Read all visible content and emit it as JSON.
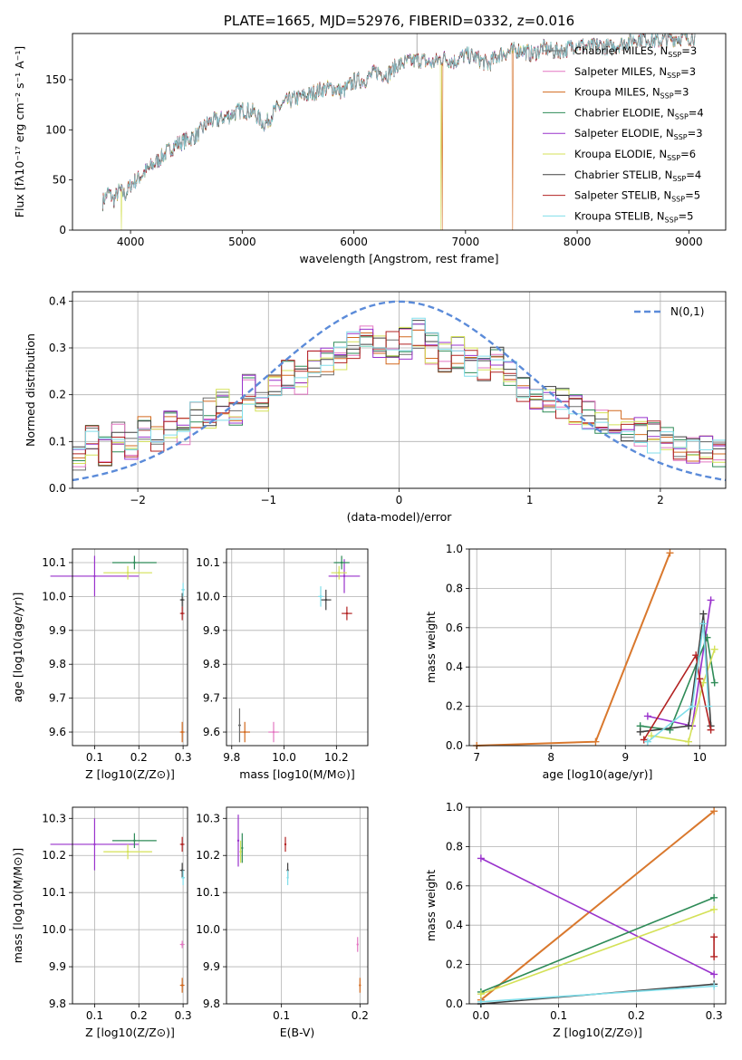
{
  "colors": {
    "chabrier_miles": "#6b6b6b",
    "salpeter_miles": "#e377c2",
    "kroupa_miles": "#d2691e",
    "chabrier_elodie": "#2e8b57",
    "salpeter_elodie": "#9932cc",
    "kroupa_elodie": "#d4e157",
    "chabrier_stelib": "#404040",
    "salpeter_stelib": "#b22222",
    "kroupa_stelib": "#80deea",
    "normal": "#5b8bd9",
    "model_orange": "#d9782d"
  },
  "chart_data": [
    {
      "id": "spectrum",
      "type": "line",
      "title": "PLATE=1665, MJD=52976, FIBERID=0332, z=0.016",
      "xlabel": "wavelength [Angstrom, rest frame]",
      "ylabel": "Flux [fλ10⁻¹⁷ erg cm⁻² s⁻¹ A⁻¹]",
      "xlim": [
        3480,
        9330
      ],
      "ylim": [
        0,
        196
      ],
      "xticks": [
        4000,
        5000,
        6000,
        7000,
        8000,
        9000
      ],
      "yticks": [
        0,
        50,
        100,
        150
      ],
      "x": [
        3750,
        3800,
        3850,
        3900,
        3950,
        4000,
        4100,
        4200,
        4300,
        4400,
        4500,
        4600,
        4700,
        4800,
        4900,
        5000,
        5100,
        5200,
        5300,
        5400,
        5500,
        5600,
        5700,
        5800,
        5900,
        6000,
        6100,
        6200,
        6300,
        6400,
        6500,
        6600,
        6700,
        6800,
        6900,
        7000,
        7100,
        7200,
        7300,
        7400,
        7500,
        7600,
        7700,
        7800,
        7900,
        8000,
        8100,
        8200,
        8300,
        8400,
        8500,
        8600,
        8700,
        8800,
        8900,
        9000,
        9050
      ],
      "y": [
        28,
        38,
        30,
        40,
        35,
        45,
        55,
        65,
        75,
        85,
        90,
        95,
        108,
        110,
        115,
        120,
        118,
        105,
        120,
        128,
        132,
        135,
        140,
        142,
        138,
        148,
        150,
        158,
        155,
        165,
        168,
        170,
        166,
        172,
        168,
        175,
        172,
        165,
        175,
        178,
        180,
        175,
        182,
        178,
        180,
        186,
        182,
        184,
        182,
        186,
        190,
        192,
        188,
        190,
        192,
        192,
        193
      ],
      "series": [
        {
          "name": "Chabrier MILES, N_SSP=3",
          "color_key": "chabrier_miles"
        },
        {
          "name": "Salpeter MILES, N_SSP=3",
          "color_key": "salpeter_miles"
        },
        {
          "name": "Kroupa MILES, N_SSP=3",
          "color_key": "kroupa_miles"
        },
        {
          "name": "Chabrier ELODIE, N_SSP=4",
          "color_key": "chabrier_elodie"
        },
        {
          "name": "Salpeter ELODIE, N_SSP=3",
          "color_key": "salpeter_elodie"
        },
        {
          "name": "Kroupa ELODIE, N_SSP=6",
          "color_key": "kroupa_elodie"
        },
        {
          "name": "Chabrier STELIB, N_SSP=4",
          "color_key": "chabrier_stelib"
        },
        {
          "name": "Salpeter STELIB, N_SSP=5",
          "color_key": "salpeter_stelib"
        },
        {
          "name": "Kroupa STELIB, N_SSP=5",
          "color_key": "kroupa_stelib"
        }
      ],
      "legend": "top-right",
      "grid": false
    },
    {
      "id": "residuals",
      "type": "line",
      "xlabel": "(data-model)/error",
      "ylabel": "Normed distribution",
      "xlim": [
        -2.5,
        2.5
      ],
      "ylim": [
        0,
        0.42
      ],
      "xticks": [
        -2,
        -1,
        0,
        1,
        2
      ],
      "yticks": [
        0.0,
        0.1,
        0.2,
        0.3,
        0.4
      ],
      "legend_label": "N(0,1)",
      "legend": "top-right",
      "grid": true,
      "bin_edges": [
        -2.5,
        -2.4,
        -2.3,
        -2.2,
        -2.1,
        -2.0,
        -1.9,
        -1.8,
        -1.7,
        -1.6,
        -1.5,
        -1.4,
        -1.3,
        -1.2,
        -1.1,
        -1.0,
        -0.9,
        -0.8,
        -0.7,
        -0.6,
        -0.5,
        -0.4,
        -0.3,
        -0.2,
        -0.1,
        0.0,
        0.1,
        0.2,
        0.3,
        0.4,
        0.5,
        0.6,
        0.7,
        0.8,
        0.9,
        1.0,
        1.1,
        1.2,
        1.3,
        1.4,
        1.5,
        1.6,
        1.7,
        1.8,
        1.9,
        2.0,
        2.1,
        2.2,
        2.3,
        2.4,
        2.5
      ],
      "histogram_base": [
        0.07,
        0.1,
        0.08,
        0.11,
        0.09,
        0.12,
        0.1,
        0.14,
        0.12,
        0.15,
        0.16,
        0.18,
        0.17,
        0.21,
        0.2,
        0.22,
        0.24,
        0.23,
        0.26,
        0.27,
        0.28,
        0.3,
        0.32,
        0.31,
        0.3,
        0.31,
        0.33,
        0.3,
        0.28,
        0.29,
        0.27,
        0.26,
        0.27,
        0.24,
        0.22,
        0.2,
        0.19,
        0.18,
        0.17,
        0.16,
        0.15,
        0.14,
        0.13,
        0.12,
        0.11,
        0.1,
        0.09,
        0.08,
        0.08,
        0.07
      ]
    },
    {
      "id": "age_vs_z",
      "type": "scatter",
      "xlabel": "Z [log10(Z/Z⊙)]",
      "ylabel": "age  [log10(age/yr)]",
      "xlim": [
        0.05,
        0.31
      ],
      "ylim": [
        9.56,
        10.14
      ],
      "xticks": [
        0.1,
        0.2,
        0.3
      ],
      "yticks": [
        9.6,
        9.7,
        9.8,
        9.9,
        10.0,
        10.1
      ],
      "grid": true,
      "points": [
        {
          "x": 0.1,
          "y": 10.06,
          "xerr": 0.1,
          "yerr": 0.06,
          "color_key": "salpeter_elodie"
        },
        {
          "x": 0.19,
          "y": 10.1,
          "xerr": 0.05,
          "yerr": 0.02,
          "color_key": "chabrier_elodie"
        },
        {
          "x": 0.175,
          "y": 10.07,
          "xerr": 0.055,
          "yerr": 0.02,
          "color_key": "kroupa_elodie"
        },
        {
          "x": 0.298,
          "y": 9.99,
          "xerr": 0.005,
          "yerr": 0.02,
          "color_key": "chabrier_stelib"
        },
        {
          "x": 0.298,
          "y": 9.95,
          "xerr": 0.005,
          "yerr": 0.02,
          "color_key": "salpeter_stelib"
        },
        {
          "x": 0.298,
          "y": 9.6,
          "xerr": 0.005,
          "yerr": 0.03,
          "color_key": "kroupa_miles"
        },
        {
          "x": 0.3,
          "y": 10.02,
          "xerr": 0.004,
          "yerr": 0.02,
          "color_key": "kroupa_stelib"
        }
      ]
    },
    {
      "id": "age_vs_mass",
      "type": "scatter",
      "xlabel": "mass [log10(M/M⊙)]",
      "ylabel": "",
      "xlim": [
        9.78,
        10.32
      ],
      "ylim": [
        9.56,
        10.14
      ],
      "xticks": [
        9.8,
        10.0,
        10.2
      ],
      "yticks": [
        9.6,
        9.7,
        9.8,
        9.9,
        10.0,
        10.1
      ],
      "grid": true,
      "points": [
        {
          "x": 10.23,
          "y": 10.06,
          "xerr": 0.06,
          "yerr": 0.05,
          "color_key": "salpeter_elodie"
        },
        {
          "x": 10.22,
          "y": 10.1,
          "xerr": 0.03,
          "yerr": 0.02,
          "color_key": "chabrier_elodie"
        },
        {
          "x": 10.21,
          "y": 10.07,
          "xerr": 0.03,
          "yerr": 0.02,
          "color_key": "kroupa_elodie"
        },
        {
          "x": 10.16,
          "y": 9.99,
          "xerr": 0.02,
          "yerr": 0.03,
          "color_key": "chabrier_stelib"
        },
        {
          "x": 10.24,
          "y": 9.95,
          "xerr": 0.02,
          "yerr": 0.02,
          "color_key": "salpeter_stelib"
        },
        {
          "x": 10.14,
          "y": 10.0,
          "xerr": 0.01,
          "yerr": 0.03,
          "color_key": "kroupa_stelib"
        },
        {
          "x": 9.85,
          "y": 9.6,
          "xerr": 0.02,
          "yerr": 0.03,
          "color_key": "kroupa_miles"
        },
        {
          "x": 9.83,
          "y": 9.62,
          "xerr": 0.005,
          "yerr": 0.05,
          "color_key": "chabrier_miles"
        },
        {
          "x": 9.96,
          "y": 9.6,
          "xerr": 0.02,
          "yerr": 0.03,
          "color_key": "salpeter_miles"
        }
      ]
    },
    {
      "id": "massweight_vs_age",
      "type": "line",
      "xlabel": "age  [log10(age/yr)]",
      "ylabel": "mass weight",
      "xlim": [
        6.9,
        10.35
      ],
      "ylim": [
        0,
        1.0
      ],
      "xticks": [
        7,
        8,
        9,
        10
      ],
      "yticks": [
        0.0,
        0.2,
        0.4,
        0.6,
        0.8,
        1.0
      ],
      "grid": true,
      "series": [
        {
          "color_key": "model_orange",
          "points": [
            [
              7.0,
              0.0
            ],
            [
              8.6,
              0.02
            ],
            [
              9.6,
              0.98
            ]
          ]
        },
        {
          "color_key": "salpeter_elodie",
          "points": [
            [
              9.3,
              0.15
            ],
            [
              9.9,
              0.1
            ],
            [
              10.15,
              0.74
            ]
          ]
        },
        {
          "color_key": "chabrier_elodie",
          "points": [
            [
              9.2,
              0.1
            ],
            [
              9.6,
              0.08
            ],
            [
              10.1,
              0.55
            ],
            [
              10.2,
              0.32
            ]
          ]
        },
        {
          "color_key": "kroupa_elodie",
          "points": [
            [
              9.35,
              0.05
            ],
            [
              9.85,
              0.02
            ],
            [
              10.05,
              0.32
            ],
            [
              10.2,
              0.49
            ]
          ]
        },
        {
          "color_key": "chabrier_stelib",
          "points": [
            [
              9.2,
              0.07
            ],
            [
              9.85,
              0.1
            ],
            [
              10.05,
              0.67
            ],
            [
              10.15,
              0.1
            ]
          ]
        },
        {
          "color_key": "salpeter_stelib",
          "points": [
            [
              9.25,
              0.03
            ],
            [
              9.95,
              0.46
            ],
            [
              10.0,
              0.34
            ],
            [
              10.15,
              0.08
            ]
          ]
        },
        {
          "color_key": "kroupa_stelib",
          "points": [
            [
              9.3,
              0.02
            ],
            [
              9.9,
              0.2
            ],
            [
              10.05,
              0.62
            ],
            [
              10.12,
              0.2
            ]
          ]
        }
      ]
    },
    {
      "id": "mass_vs_z",
      "type": "scatter",
      "xlabel": "Z [log10(Z/Z⊙)]",
      "ylabel": "mass [log10(M/M⊙)]",
      "xlim": [
        0.05,
        0.31
      ],
      "ylim": [
        9.8,
        10.33
      ],
      "xticks": [
        0.1,
        0.2,
        0.3
      ],
      "yticks": [
        9.8,
        9.9,
        10.0,
        10.1,
        10.2,
        10.3
      ],
      "grid": true,
      "points": [
        {
          "x": 0.1,
          "y": 10.23,
          "xerr": 0.1,
          "yerr": 0.07,
          "color_key": "salpeter_elodie"
        },
        {
          "x": 0.19,
          "y": 10.24,
          "xerr": 0.05,
          "yerr": 0.02,
          "color_key": "chabrier_elodie"
        },
        {
          "x": 0.175,
          "y": 10.21,
          "xerr": 0.055,
          "yerr": 0.02,
          "color_key": "kroupa_elodie"
        },
        {
          "x": 0.298,
          "y": 10.16,
          "xerr": 0.005,
          "yerr": 0.02,
          "color_key": "chabrier_stelib"
        },
        {
          "x": 0.298,
          "y": 10.23,
          "xerr": 0.005,
          "yerr": 0.02,
          "color_key": "salpeter_stelib"
        },
        {
          "x": 0.3,
          "y": 10.14,
          "xerr": 0.004,
          "yerr": 0.02,
          "color_key": "kroupa_stelib"
        },
        {
          "x": 0.298,
          "y": 9.96,
          "xerr": 0.005,
          "yerr": 0.01,
          "color_key": "salpeter_miles"
        },
        {
          "x": 0.298,
          "y": 9.85,
          "xerr": 0.005,
          "yerr": 0.02,
          "color_key": "kroupa_miles"
        }
      ]
    },
    {
      "id": "mass_vs_ebv",
      "type": "scatter",
      "xlabel": "E(B-V)",
      "ylabel": "",
      "xlim": [
        0.03,
        0.21
      ],
      "ylim": [
        9.8,
        10.33
      ],
      "xticks": [
        0.1,
        0.2
      ],
      "yticks": [
        9.8,
        9.9,
        10.0,
        10.1,
        10.2,
        10.3
      ],
      "grid": true,
      "points": [
        {
          "x": 0.045,
          "y": 10.24,
          "yerr": 0.07,
          "color_key": "salpeter_elodie"
        },
        {
          "x": 0.05,
          "y": 10.22,
          "yerr": 0.04,
          "color_key": "chabrier_elodie"
        },
        {
          "x": 0.048,
          "y": 10.21,
          "yerr": 0.03,
          "color_key": "kroupa_elodie"
        },
        {
          "x": 0.108,
          "y": 10.16,
          "yerr": 0.02,
          "color_key": "chabrier_stelib"
        },
        {
          "x": 0.105,
          "y": 10.23,
          "yerr": 0.02,
          "color_key": "salpeter_stelib"
        },
        {
          "x": 0.108,
          "y": 10.14,
          "yerr": 0.02,
          "color_key": "kroupa_stelib"
        },
        {
          "x": 0.197,
          "y": 9.96,
          "yerr": 0.02,
          "color_key": "salpeter_miles"
        },
        {
          "x": 0.2,
          "y": 9.85,
          "yerr": 0.02,
          "color_key": "kroupa_miles"
        }
      ]
    },
    {
      "id": "massweight_vs_z",
      "type": "line",
      "xlabel": "Z [log10(Z/Z⊙)]",
      "ylabel": "mass weight",
      "xlim": [
        -0.015,
        0.315
      ],
      "ylim": [
        0,
        1.0
      ],
      "xticks": [
        0.0,
        0.1,
        0.2,
        0.3
      ],
      "yticks": [
        0.0,
        0.2,
        0.4,
        0.6,
        0.8,
        1.0
      ],
      "grid": true,
      "series": [
        {
          "color_key": "model_orange",
          "points": [
            [
              0.0,
              0.02
            ],
            [
              0.3,
              0.98
            ]
          ]
        },
        {
          "color_key": "salpeter_elodie",
          "points": [
            [
              0.0,
              0.74
            ],
            [
              0.3,
              0.15
            ]
          ]
        },
        {
          "color_key": "chabrier_elodie",
          "points": [
            [
              0.0,
              0.06
            ],
            [
              0.3,
              0.54
            ]
          ]
        },
        {
          "color_key": "kroupa_elodie",
          "points": [
            [
              0.0,
              0.05
            ],
            [
              0.3,
              0.48
            ]
          ]
        },
        {
          "color_key": "chabrier_stelib",
          "points": [
            [
              0.0,
              0.0
            ],
            [
              0.3,
              0.1
            ]
          ]
        },
        {
          "color_key": "kroupa_stelib",
          "points": [
            [
              0.0,
              0.01
            ],
            [
              0.3,
              0.09
            ]
          ]
        },
        {
          "color_key": "salpeter_stelib",
          "points": [
            [
              0.3,
              0.34
            ],
            [
              0.3,
              0.24
            ]
          ]
        }
      ]
    }
  ]
}
